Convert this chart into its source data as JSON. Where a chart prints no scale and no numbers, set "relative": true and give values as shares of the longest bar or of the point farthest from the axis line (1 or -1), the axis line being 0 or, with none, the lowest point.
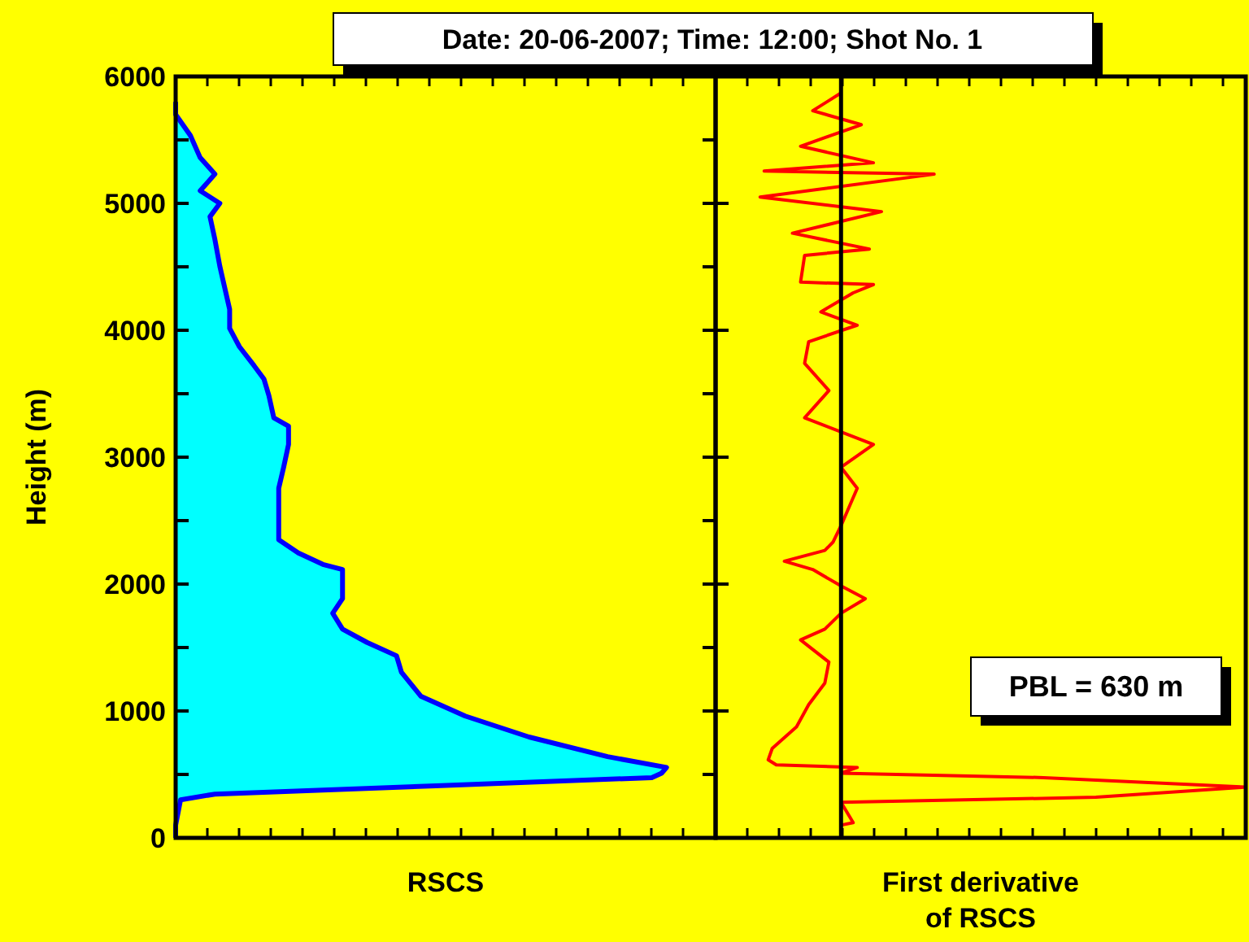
{
  "chart_data": [
    {
      "type": "area",
      "orientation": "horizontal",
      "relative": true,
      "title": "Date: 20-06-2007; Time: 12:00; Shot No. 1",
      "xlabel": "RSCS",
      "ylabel": "Height (m)",
      "tick_labels": "y",
      "ylim": [
        0,
        6000
      ],
      "yticks": [
        0,
        {
          "value": 500,
          "label": null
        },
        1000,
        {
          "value": 1500,
          "label": null
        },
        2000,
        {
          "value": 2500,
          "label": null
        },
        3000,
        {
          "value": 3500,
          "label": null
        },
        4000,
        {
          "value": 4500,
          "label": null
        },
        5000,
        {
          "value": 5500,
          "label": null
        },
        6000
      ],
      "series": [
        {
          "color": "#00ffff",
          "x": [
            0,
            100,
            300,
            345,
            410,
            475,
            510,
            555,
            640,
            795,
            960,
            1115,
            1305,
            1435,
            1540,
            1645,
            1770,
            1885,
            2115,
            2155,
            2245,
            2350,
            2500,
            2755,
            2920,
            3100,
            3245,
            3310,
            3485,
            3615,
            3720,
            3870,
            4015,
            4165,
            4335,
            4505,
            4715,
            4895,
            5000,
            5100,
            5230,
            5360,
            5535,
            5700,
            5800
          ],
          "values": [
            0,
            0,
            0.01,
            0.08,
            0.53,
            0.97,
            0.99,
            1,
            0.88,
            0.72,
            0.59,
            0.5,
            0.46,
            0.45,
            0.39,
            0.34,
            0.32,
            0.34,
            0.34,
            0.3,
            0.25,
            0.21,
            0.21,
            0.21,
            0.22,
            0.23,
            0.23,
            0.2,
            0.19,
            0.18,
            0.16,
            0.13,
            0.11,
            0.11,
            0.1,
            0.09,
            0.08,
            0.07,
            0.09,
            0.05,
            0.08,
            0.05,
            0.03,
            0,
            0
          ]
        }
      ]
    },
    {
      "type": "line",
      "orientation": "horizontal",
      "relative": true,
      "xlabel": "First derivative of RSCS",
      "tick_labels": false,
      "ylim": [
        0,
        6000
      ],
      "yticks": [
        0,
        1000,
        2000,
        3000,
        4000,
        5000,
        6000
      ],
      "annotations": [
        "PBL = 630 m"
      ],
      "series": [
        {
          "color": "#ff0000",
          "x": [
            100,
            120,
            280,
            320,
            400,
            475,
            510,
            555,
            575,
            615,
            705,
            875,
            1050,
            1220,
            1385,
            1560,
            1645,
            1770,
            1885,
            1985,
            2115,
            2180,
            2265,
            2330,
            2460,
            2755,
            2920,
            3100,
            3310,
            3525,
            3740,
            3910,
            4040,
            4145,
            4295,
            4360,
            4380,
            4590,
            4640,
            4765,
            4935,
            5050,
            5230,
            5255,
            5320,
            5450,
            5620,
            5730,
            5870
          ],
          "values": [
            0,
            0.03,
            0,
            0.63,
            1,
            0.5,
            0,
            0.04,
            -0.16,
            -0.18,
            -0.17,
            -0.11,
            -0.08,
            -0.04,
            -0.03,
            -0.1,
            -0.04,
            0,
            0.06,
            0,
            -0.07,
            -0.14,
            -0.04,
            -0.02,
            0,
            0.04,
            0,
            0.08,
            -0.09,
            -0.03,
            -0.09,
            -0.08,
            0.04,
            -0.05,
            0.03,
            0.08,
            -0.1,
            -0.09,
            0.07,
            -0.12,
            0.1,
            -0.2,
            0.23,
            -0.19,
            0.08,
            -0.1,
            0.05,
            -0.07,
            0
          ]
        }
      ]
    }
  ]
}
